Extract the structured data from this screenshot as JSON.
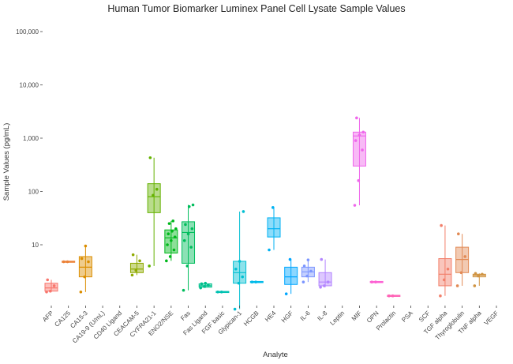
{
  "chart_data": {
    "type": "box",
    "title": "Human Tumor Biomarker Luminex Panel Cell Lysate Sample Values",
    "xlabel": "Analyte",
    "ylabel": "Sample Values (pg/mL)",
    "y_scale": "log10",
    "ylim": [
      0.6,
      100000
    ],
    "y_ticks": [
      10,
      100,
      1000,
      10000,
      100000
    ],
    "y_tick_labels": [
      "10",
      "100",
      "1,000",
      "10,000",
      "100,000"
    ],
    "grid": false,
    "legend": "none",
    "categories": [
      "AFP",
      "CA125",
      "CA15-3",
      "CA19-9 (U/mL)",
      "CD40 Ligand",
      "CEACAM-5",
      "CYFRA21-1",
      "ENO2/NSE",
      "Fas",
      "Fas Ligand",
      "FGF basic",
      "Glypican-1",
      "HCGB",
      "HE4",
      "HGF",
      "IL-6",
      "IL-8",
      "Leptin",
      "MIF",
      "OPN",
      "Prolactin",
      "PSA",
      "SCF",
      "TGF alpha",
      "Thyroglobulin",
      "TNF alpha",
      "VEGF"
    ],
    "colors": [
      "#F8766D",
      "#EC8239",
      "#DB8E00",
      "#C79800",
      "#AEA200",
      "#8FAA00",
      "#64B200",
      "#00B81B",
      "#00BD5C",
      "#00C08D",
      "#00C1B2",
      "#00BFD2",
      "#00BAE9",
      "#00B2F3",
      "#00A6FF",
      "#7C96FF",
      "#B385FF",
      "#D874FD",
      "#EF67EB",
      "#FD61D3",
      "#FF63B6",
      "#FF6B94",
      "#FC717F",
      "#F27F6A",
      "#E28A55",
      "#D09443",
      "#B99F36"
    ],
    "boxes": [
      {
        "name": "AFP",
        "min": 1.3,
        "q1": 1.35,
        "median": 1.55,
        "q3": 1.9,
        "max": 2.2,
        "points": [
          1.3,
          1.35,
          1.7,
          2.2
        ]
      },
      {
        "name": "CA125",
        "min": 4.8,
        "q1": 4.8,
        "median": 4.8,
        "q3": 4.8,
        "max": 4.8,
        "points": [
          4.8,
          4.8
        ]
      },
      {
        "name": "CA15-3",
        "min": 1.3,
        "q1": 2.5,
        "median": 3.8,
        "q3": 6.0,
        "max": 9.5,
        "points": [
          1.3,
          2.5,
          4.8,
          5.5,
          9.5
        ]
      },
      {
        "name": "CA19-9 (U/mL)",
        "min": null,
        "q1": null,
        "median": null,
        "q3": null,
        "max": null,
        "points": []
      },
      {
        "name": "CD40 Ligand",
        "min": null,
        "q1": null,
        "median": null,
        "q3": null,
        "max": null,
        "points": []
      },
      {
        "name": "CEACAM-5",
        "min": 2.7,
        "q1": 3.0,
        "median": 3.5,
        "q3": 4.5,
        "max": 6.5,
        "points": [
          2.7,
          3.3,
          5.0,
          6.5
        ]
      },
      {
        "name": "CYFRA21-1",
        "min": 4.0,
        "q1": 40,
        "median": 80,
        "q3": 140,
        "max": 430,
        "points": [
          4.0,
          85,
          110,
          430
        ]
      },
      {
        "name": "ENO2/NSE",
        "min": 5.0,
        "q1": 7.0,
        "median": 13.5,
        "q3": 19,
        "max": 28,
        "points": [
          5.0,
          6.0,
          8.0,
          10,
          12,
          14,
          16,
          18,
          20,
          25,
          28
        ]
      },
      {
        "name": "Fas",
        "min": 1.4,
        "q1": 4.5,
        "median": 17,
        "q3": 27,
        "max": 56,
        "points": [
          1.4,
          4.0,
          9.0,
          12,
          16,
          20,
          24,
          52,
          56
        ]
      },
      {
        "name": "Fas Ligand",
        "min": 1.55,
        "q1": 1.6,
        "median": 1.7,
        "q3": 1.85,
        "max": 1.9,
        "points": [
          1.55,
          1.65,
          1.75,
          1.85,
          1.9
        ]
      },
      {
        "name": "FGF basic",
        "min": 1.3,
        "q1": 1.3,
        "median": 1.3,
        "q3": 1.3,
        "max": 1.3,
        "points": [
          1.3,
          1.3
        ]
      },
      {
        "name": "Glypican-1",
        "min": 0.62,
        "q1": 1.9,
        "median": 3.0,
        "q3": 4.9,
        "max": 42,
        "points": [
          0.62,
          1.9,
          2.5,
          3.5,
          4.9,
          42
        ]
      },
      {
        "name": "HCGB",
        "min": 2.0,
        "q1": 2.0,
        "median": 2.0,
        "q3": 2.0,
        "max": 2.0,
        "points": [
          2.0,
          2.0
        ]
      },
      {
        "name": "HE4",
        "min": 8.0,
        "q1": 14,
        "median": 20,
        "q3": 32,
        "max": 50,
        "points": [
          8.0,
          50
        ]
      },
      {
        "name": "HGF",
        "min": 1.2,
        "q1": 1.8,
        "median": 2.5,
        "q3": 3.8,
        "max": 5.3,
        "points": [
          1.2,
          5.3
        ]
      },
      {
        "name": "IL-6",
        "min": 2.0,
        "q1": 2.5,
        "median": 3.1,
        "q3": 3.8,
        "max": 5.2,
        "points": [
          2.0,
          2.6,
          3.2,
          4.0,
          5.2
        ]
      },
      {
        "name": "IL-8",
        "min": 1.6,
        "q1": 1.7,
        "median": 2.0,
        "q3": 3.0,
        "max": 5.3,
        "points": [
          1.6,
          1.7,
          2.0,
          5.3
        ]
      },
      {
        "name": "Leptin",
        "min": null,
        "q1": null,
        "median": null,
        "q3": null,
        "max": null,
        "points": []
      },
      {
        "name": "MIF",
        "min": 55,
        "q1": 300,
        "median": 1100,
        "q3": 1300,
        "max": 2400,
        "points": [
          55,
          160,
          600,
          900,
          1150,
          1300,
          2400
        ]
      },
      {
        "name": "OPN",
        "min": 2.0,
        "q1": 2.0,
        "median": 2.0,
        "q3": 2.0,
        "max": 2.0,
        "points": [
          2.0,
          2.0
        ]
      },
      {
        "name": "Prolactin",
        "min": 1.1,
        "q1": 1.1,
        "median": 1.1,
        "q3": 1.1,
        "max": 1.1,
        "points": [
          1.1,
          1.1
        ]
      },
      {
        "name": "PSA",
        "min": null,
        "q1": null,
        "median": null,
        "q3": null,
        "max": null,
        "points": []
      },
      {
        "name": "SCF",
        "min": null,
        "q1": null,
        "median": null,
        "q3": null,
        "max": null,
        "points": []
      },
      {
        "name": "TGF alpha",
        "min": 1.1,
        "q1": 1.7,
        "median": 2.8,
        "q3": 5.5,
        "max": 23,
        "points": [
          1.1,
          2.2,
          3.5,
          23
        ]
      },
      {
        "name": "Thyroglobulin",
        "min": 1.7,
        "q1": 3.0,
        "median": 5.3,
        "q3": 9.0,
        "max": 16,
        "points": [
          1.7,
          3.0,
          6.0,
          16
        ]
      },
      {
        "name": "TNF alpha",
        "min": 1.7,
        "q1": 2.5,
        "median": 2.7,
        "q3": 2.8,
        "max": 2.9,
        "points": [
          1.7,
          2.6,
          2.8,
          2.9
        ]
      },
      {
        "name": "VEGF",
        "min": null,
        "q1": null,
        "median": null,
        "q3": null,
        "max": null,
        "points": []
      }
    ]
  }
}
